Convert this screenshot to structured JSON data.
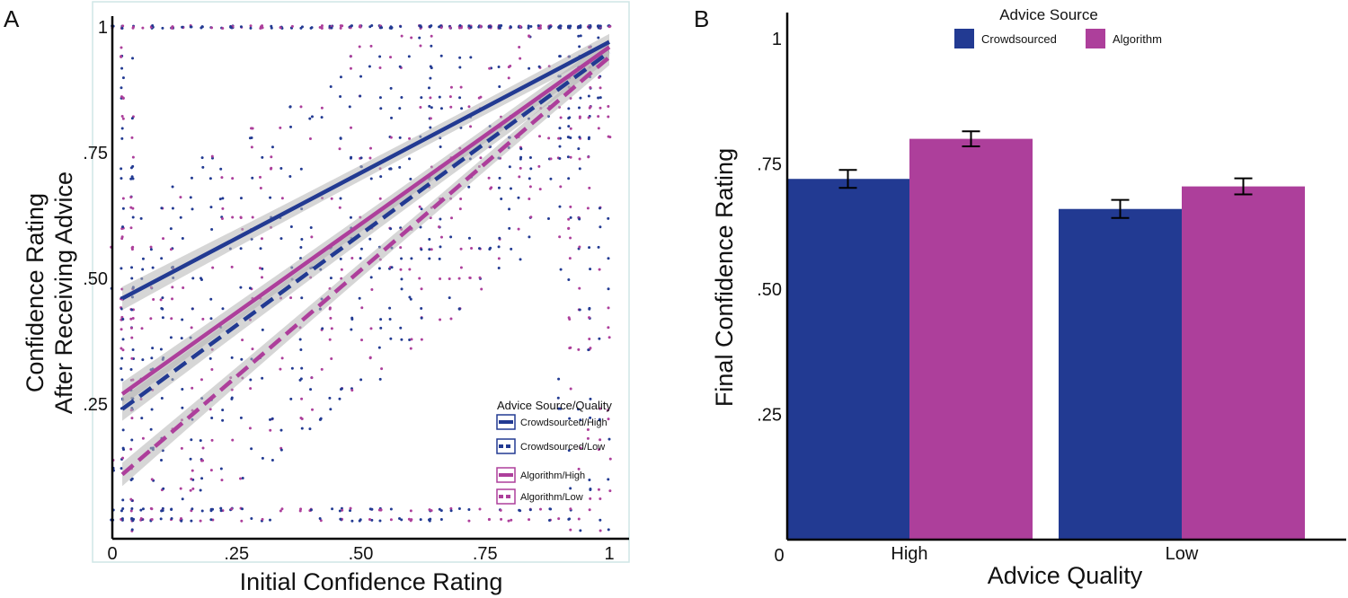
{
  "colors": {
    "crowdsourced": "#223a92",
    "algorithm": "#ad3f9b",
    "ci_band": "#b4b4b4",
    "axis": "#000000"
  },
  "panels": {
    "a_letter": "A",
    "b_letter": "B"
  },
  "chart_data": [
    {
      "type": "scatter",
      "panel": "A",
      "xlabel": "Initial Confidence Rating",
      "ylabel_line1": "Confidence Rating",
      "ylabel_line2": "After Receiving Advice",
      "xlim": [
        0,
        1
      ],
      "ylim": [
        0,
        1
      ],
      "x_ticks": [
        {
          "value": 0,
          "label": "0"
        },
        {
          "value": 0.25,
          "label": ".25"
        },
        {
          "value": 0.5,
          "label": ".50"
        },
        {
          "value": 0.75,
          "label": ".75"
        },
        {
          "value": 1,
          "label": "1"
        }
      ],
      "y_ticks": [
        {
          "value": 0.25,
          "label": ".25"
        },
        {
          "value": 0.5,
          "label": ".50"
        },
        {
          "value": 0.75,
          "label": ".75"
        },
        {
          "value": 1,
          "label": "1"
        }
      ],
      "legend": {
        "title": "Advice Source/Quality",
        "position": "bottom-right",
        "entries": [
          "Crowdsourced/High",
          "Crowdsourced/Low",
          "Algorithm/High",
          "Algorithm/Low"
        ]
      },
      "fit_lines": [
        {
          "name": "Crowdsourced/High",
          "source": "crowdsourced",
          "dashed": false,
          "x": [
            0.02,
            1.0
          ],
          "y": [
            0.46,
            0.97
          ]
        },
        {
          "name": "Crowdsourced/Low",
          "source": "crowdsourced",
          "dashed": true,
          "x": [
            0.02,
            1.0
          ],
          "y": [
            0.24,
            0.95
          ]
        },
        {
          "name": "Algorithm/High",
          "source": "algorithm",
          "dashed": false,
          "x": [
            0.02,
            1.0
          ],
          "y": [
            0.27,
            0.96
          ]
        },
        {
          "name": "Algorithm/Low",
          "source": "algorithm",
          "dashed": true,
          "x": [
            0.02,
            1.0
          ],
          "y": [
            0.11,
            0.94
          ]
        }
      ]
    },
    {
      "type": "bar",
      "panel": "B",
      "title": "",
      "xlabel": "Advice Quality",
      "ylabel": "Final Confidence Rating",
      "ylim": [
        0,
        1.05
      ],
      "categories": [
        "High",
        "Low"
      ],
      "y_ticks": [
        {
          "value": 0,
          "label": "0"
        },
        {
          "value": 0.25,
          "label": ".25"
        },
        {
          "value": 0.5,
          "label": ".50"
        },
        {
          "value": 0.75,
          "label": ".75"
        },
        {
          "value": 1,
          "label": "1"
        }
      ],
      "legend": {
        "title": "Advice Source",
        "position": "top"
      },
      "series": [
        {
          "name": "Crowdsourced",
          "values": [
            0.72,
            0.66
          ],
          "errors": [
            0.018,
            0.018
          ]
        },
        {
          "name": "Algorithm",
          "values": [
            0.8,
            0.705
          ],
          "errors": [
            0.015,
            0.016
          ]
        }
      ]
    }
  ]
}
